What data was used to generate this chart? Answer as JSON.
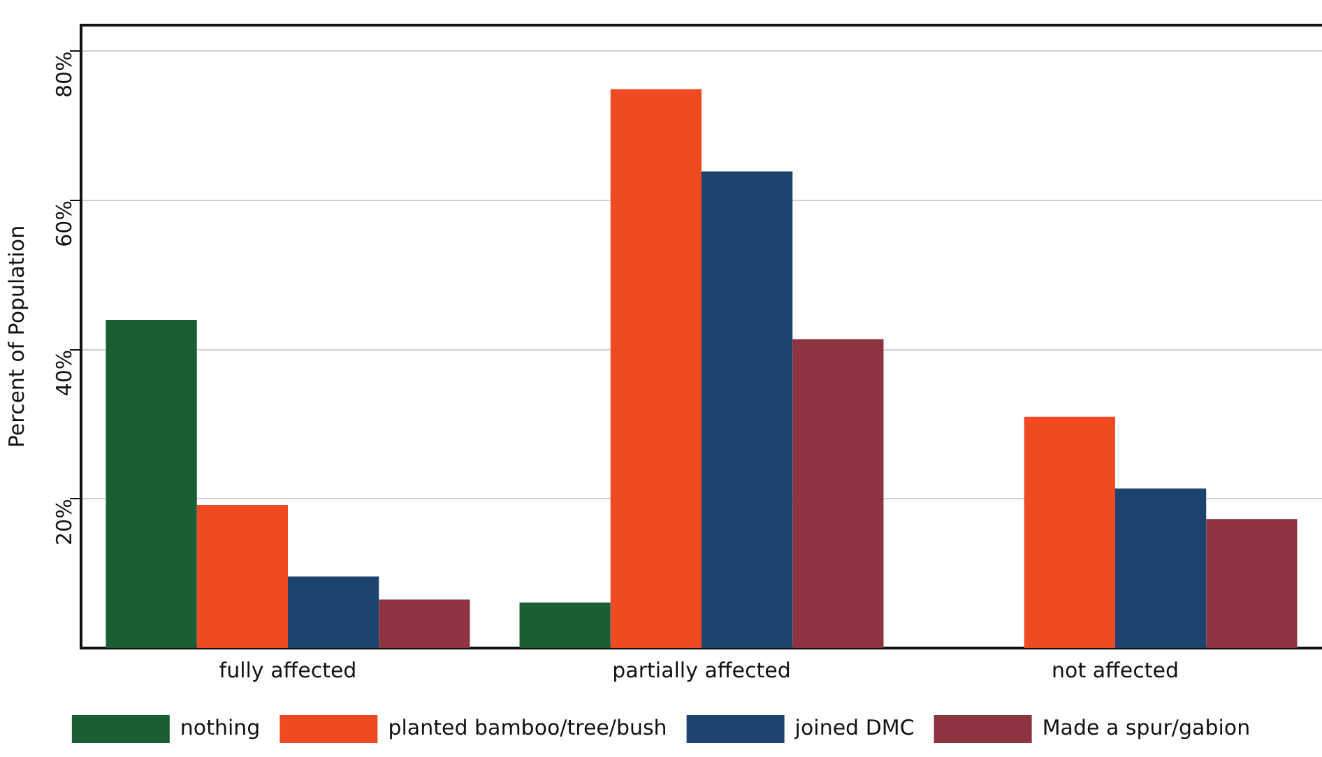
{
  "chart_data": {
    "type": "bar",
    "ylabel": "Percent of Population",
    "categories": [
      "fully affected",
      "partially affected",
      "not affected"
    ],
    "series": [
      {
        "name": "nothing",
        "color": "#1b5e34",
        "values": [
          44,
          6.1,
          0
        ]
      },
      {
        "name": "planted bamboo/tree/bush",
        "color": "#f04a22",
        "values": [
          19.2,
          74.9,
          31
        ]
      },
      {
        "name": "joined DMC",
        "color": "#1c446e",
        "values": [
          9.6,
          63.9,
          21.4
        ]
      },
      {
        "name": "Made a spur/gabion",
        "color": "#8e3340",
        "values": [
          6.5,
          41.4,
          17.3
        ]
      }
    ],
    "ylim": [
      0,
      83.5
    ],
    "yticks": [
      {
        "value": 20,
        "label": "20%"
      },
      {
        "value": 40,
        "label": "40%"
      },
      {
        "value": 60,
        "label": "60%"
      },
      {
        "value": 80,
        "label": "80%"
      }
    ],
    "grid": "y",
    "legend": "bottom"
  }
}
